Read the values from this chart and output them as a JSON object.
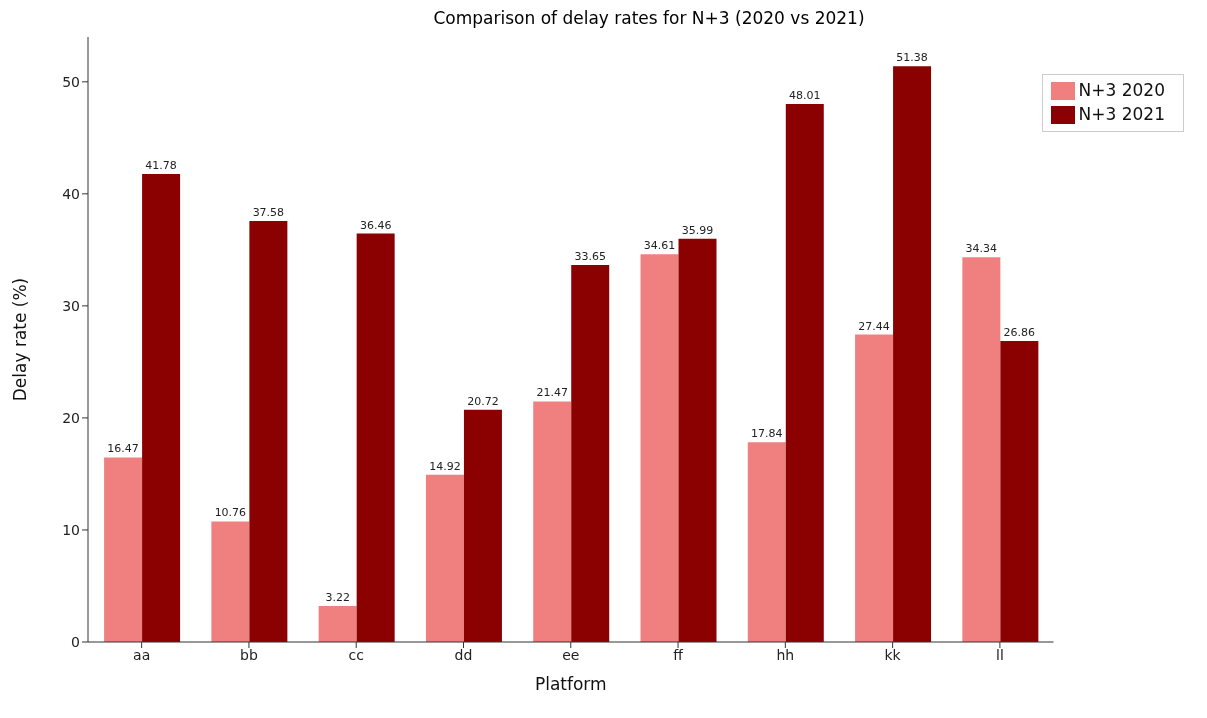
{
  "chart_data": {
    "type": "bar",
    "title": "Comparison of delay rates for N+3 (2020 vs 2021)",
    "xlabel": "Platform",
    "ylabel": "Delay rate (%)",
    "categories": [
      "aa",
      "bb",
      "cc",
      "dd",
      "ee",
      "ff",
      "hh",
      "kk",
      "ll"
    ],
    "series": [
      {
        "name": "N+3 2020",
        "color": "#f08080",
        "values": [
          16.47,
          10.76,
          3.22,
          14.92,
          21.47,
          34.61,
          17.84,
          27.44,
          34.34
        ]
      },
      {
        "name": "N+3 2021",
        "color": "#8b0000",
        "values": [
          41.78,
          37.58,
          36.46,
          20.72,
          33.65,
          35.99,
          48.01,
          51.38,
          26.86
        ]
      }
    ],
    "ylim": [
      0,
      54
    ],
    "yticks": [
      0,
      10,
      20,
      30,
      40,
      50
    ],
    "grid": false,
    "legend": "top right",
    "data_labels": true
  }
}
